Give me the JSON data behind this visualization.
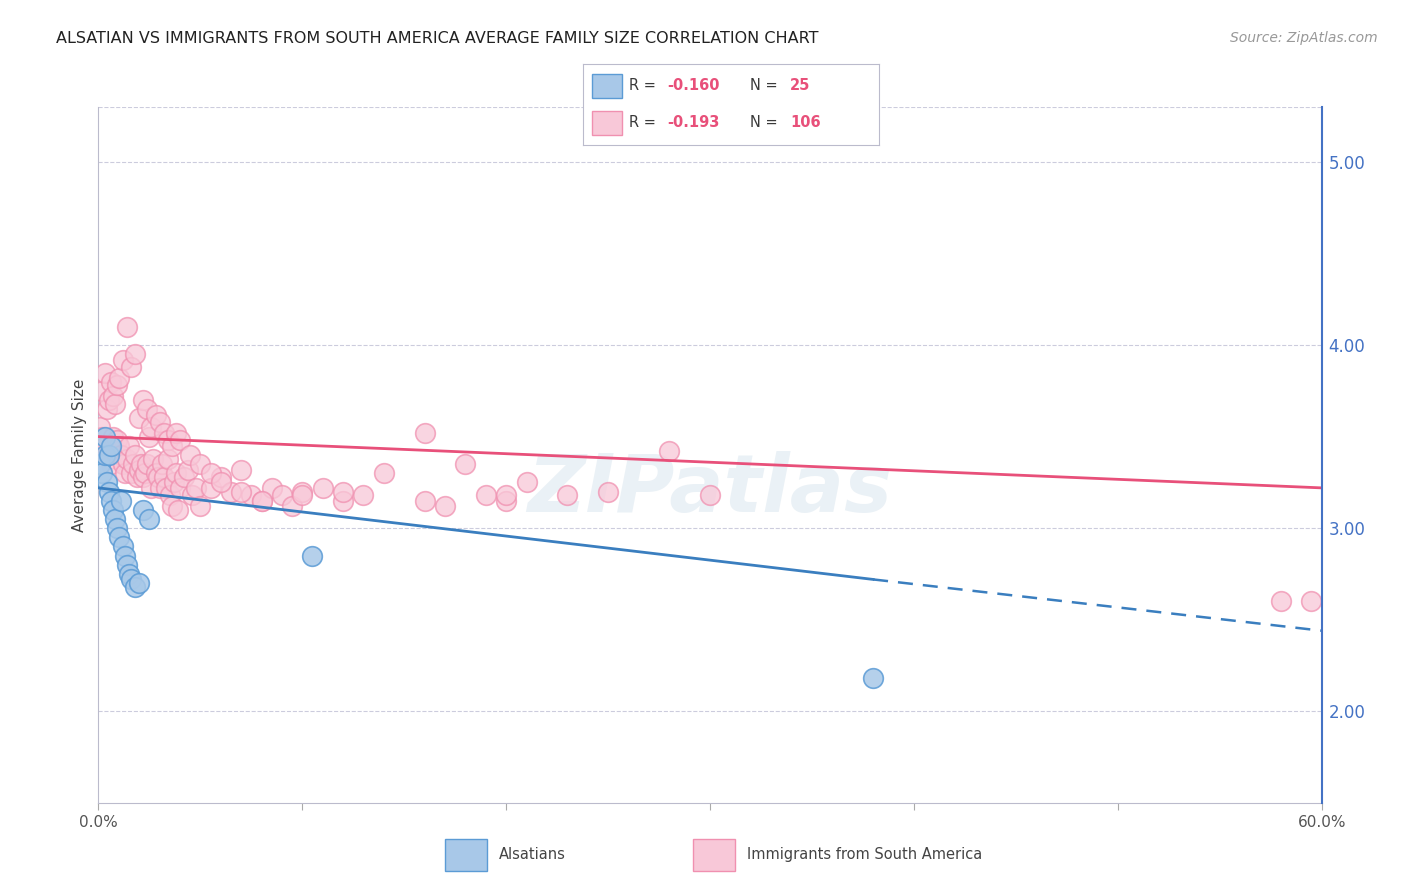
{
  "title": "ALSATIAN VS IMMIGRANTS FROM SOUTH AMERICA AVERAGE FAMILY SIZE CORRELATION CHART",
  "source": "Source: ZipAtlas.com",
  "ylabel": "Average Family Size",
  "watermark": "ZIPatlas",
  "xlim": [
    0.0,
    0.6
  ],
  "ylim": [
    1.5,
    5.3
  ],
  "yticks_right": [
    2.0,
    3.0,
    4.0,
    5.0
  ],
  "blue_scatter_face": "#a8c8e8",
  "blue_scatter_edge": "#5b9bd5",
  "pink_scatter_face": "#f8c8d8",
  "pink_scatter_edge": "#f090b0",
  "trend_blue": "#3a7ebf",
  "trend_pink": "#e8507a",
  "grid_color": "#ccccdd",
  "right_axis_color": "#4472c4",
  "legend_text_color": "#3a3a3a",
  "legend_value_color": "#e8507a",
  "alsatian_x": [
    0.001,
    0.002,
    0.003,
    0.003,
    0.004,
    0.005,
    0.005,
    0.006,
    0.006,
    0.007,
    0.008,
    0.009,
    0.01,
    0.011,
    0.012,
    0.013,
    0.014,
    0.015,
    0.016,
    0.018,
    0.02,
    0.022,
    0.025,
    0.105,
    0.38
  ],
  "alsatian_y": [
    3.35,
    3.3,
    3.4,
    3.5,
    3.25,
    3.2,
    3.4,
    3.15,
    3.45,
    3.1,
    3.05,
    3.0,
    2.95,
    3.15,
    2.9,
    2.85,
    2.8,
    2.75,
    2.72,
    2.68,
    2.7,
    3.1,
    3.05,
    2.85,
    2.18
  ],
  "sa_x": [
    0.001,
    0.002,
    0.003,
    0.004,
    0.005,
    0.006,
    0.007,
    0.008,
    0.009,
    0.01,
    0.011,
    0.012,
    0.013,
    0.014,
    0.015,
    0.016,
    0.017,
    0.018,
    0.019,
    0.02,
    0.021,
    0.022,
    0.023,
    0.024,
    0.025,
    0.026,
    0.027,
    0.028,
    0.029,
    0.03,
    0.031,
    0.032,
    0.033,
    0.034,
    0.035,
    0.036,
    0.037,
    0.038,
    0.039,
    0.04,
    0.042,
    0.044,
    0.046,
    0.048,
    0.05,
    0.055,
    0.06,
    0.065,
    0.07,
    0.075,
    0.08,
    0.085,
    0.09,
    0.095,
    0.1,
    0.11,
    0.12,
    0.13,
    0.14,
    0.16,
    0.17,
    0.18,
    0.19,
    0.2,
    0.21,
    0.23,
    0.25,
    0.28,
    0.3,
    0.002,
    0.003,
    0.004,
    0.005,
    0.006,
    0.007,
    0.008,
    0.009,
    0.01,
    0.012,
    0.014,
    0.016,
    0.018,
    0.02,
    0.022,
    0.024,
    0.026,
    0.028,
    0.03,
    0.032,
    0.034,
    0.036,
    0.038,
    0.04,
    0.045,
    0.05,
    0.055,
    0.06,
    0.07,
    0.08,
    0.1,
    0.12,
    0.16,
    0.2,
    0.58,
    0.595
  ],
  "sa_y": [
    3.55,
    3.5,
    3.45,
    3.4,
    3.38,
    3.35,
    3.5,
    3.42,
    3.48,
    3.45,
    3.4,
    3.35,
    3.3,
    3.38,
    3.45,
    3.3,
    3.35,
    3.4,
    3.28,
    3.32,
    3.35,
    3.28,
    3.3,
    3.35,
    3.5,
    3.22,
    3.38,
    3.3,
    3.28,
    3.22,
    3.35,
    3.28,
    3.22,
    3.38,
    3.18,
    3.12,
    3.25,
    3.3,
    3.1,
    3.22,
    3.28,
    3.32,
    3.18,
    3.22,
    3.12,
    3.22,
    3.28,
    3.2,
    3.32,
    3.18,
    3.15,
    3.22,
    3.18,
    3.12,
    3.2,
    3.22,
    3.15,
    3.18,
    3.3,
    3.52,
    3.12,
    3.35,
    3.18,
    3.15,
    3.25,
    3.18,
    3.2,
    3.42,
    3.18,
    3.75,
    3.85,
    3.65,
    3.7,
    3.8,
    3.72,
    3.68,
    3.78,
    3.82,
    3.92,
    4.1,
    3.88,
    3.95,
    3.6,
    3.7,
    3.65,
    3.55,
    3.62,
    3.58,
    3.52,
    3.48,
    3.45,
    3.52,
    3.48,
    3.4,
    3.35,
    3.3,
    3.25,
    3.2,
    3.15,
    3.18,
    3.2,
    3.15,
    3.18,
    2.6,
    2.6
  ],
  "blue_trendline_x0": 0.0,
  "blue_trendline_y0": 3.22,
  "blue_trendline_x1": 0.38,
  "blue_trendline_y1": 2.72,
  "blue_trendline_x2": 0.6,
  "blue_trendline_y2": 2.44,
  "pink_trendline_x0": 0.0,
  "pink_trendline_y0": 3.5,
  "pink_trendline_x1": 0.6,
  "pink_trendline_y1": 3.22
}
